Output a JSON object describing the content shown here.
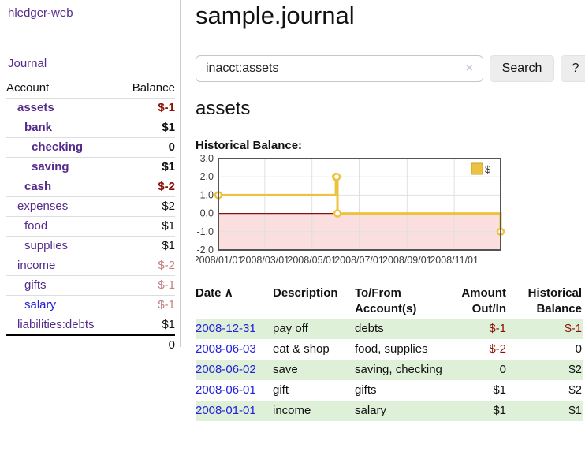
{
  "colors": {
    "link_purple": "#552a8b",
    "link_blue": "#2420dd",
    "negative_strong": "#8b0f05",
    "negative_soft": "#c47f7f",
    "row_stripe_green": "#dff0d8",
    "chart_line_gold": "#edc240",
    "chart_negative_fill": "#fbdede",
    "chart_zero_line": "#871010"
  },
  "app": {
    "title": "hledger-web"
  },
  "sidebar": {
    "journal_link": "Journal",
    "accounts": {
      "header_account": "Account",
      "header_balance": "Balance",
      "rows": [
        {
          "account": "assets",
          "balance": "$-1",
          "indent": 1,
          "bold": true,
          "balance_tone": "strong",
          "link": "purple"
        },
        {
          "account": "bank",
          "balance": "$1",
          "indent": 2,
          "bold": true,
          "balance_tone": "none",
          "link": "purple"
        },
        {
          "account": "checking",
          "balance": "0",
          "indent": 3,
          "bold": true,
          "balance_tone": "none",
          "link": "purple"
        },
        {
          "account": "saving",
          "balance": "$1",
          "indent": 3,
          "bold": true,
          "balance_tone": "none",
          "link": "purple"
        },
        {
          "account": "cash",
          "balance": "$-2",
          "indent": 2,
          "bold": true,
          "balance_tone": "strong",
          "link": "purple"
        },
        {
          "account": "expenses",
          "balance": "$2",
          "indent": 1,
          "bold": false,
          "balance_tone": "none",
          "link": "purple"
        },
        {
          "account": "food",
          "balance": "$1",
          "indent": 2,
          "bold": false,
          "balance_tone": "none",
          "link": "purple"
        },
        {
          "account": "supplies",
          "balance": "$1",
          "indent": 2,
          "bold": false,
          "balance_tone": "none",
          "link": "purple"
        },
        {
          "account": "income",
          "balance": "$-2",
          "indent": 1,
          "bold": false,
          "balance_tone": "soft",
          "link": "purple"
        },
        {
          "account": "gifts",
          "balance": "$-1",
          "indent": 2,
          "bold": false,
          "balance_tone": "soft",
          "link": "purple"
        },
        {
          "account": "salary",
          "balance": "$-1",
          "indent": 2,
          "bold": false,
          "balance_tone": "soft",
          "link": "blue"
        },
        {
          "account": "liabilities:debts",
          "balance": "$1",
          "indent": 1,
          "bold": false,
          "balance_tone": "none",
          "link": "purple"
        }
      ],
      "total": "0"
    }
  },
  "main": {
    "title": "sample.journal",
    "search": {
      "value": "inacct:assets",
      "clear_icon": "×",
      "search_button": "Search",
      "help_button": "?"
    },
    "section_title": "assets",
    "chart_label": "Historical Balance:"
  },
  "chart_data": {
    "type": "line",
    "step": true,
    "title": "Historical Balance",
    "legend": {
      "label": "$",
      "position": "top-right"
    },
    "x_range": [
      "2008-01-01",
      "2008-12-31"
    ],
    "xticks": [
      "2008/01/01",
      "2008/03/01",
      "2008/05/01",
      "2008/07/01",
      "2008/09/01",
      "2008/11/01"
    ],
    "yticks": [
      "3.0",
      "2.0",
      "1.0",
      "0.0",
      "-1.0",
      "-2.0"
    ],
    "ylim": [
      -2,
      3
    ],
    "grid": true,
    "series": [
      {
        "name": "$",
        "points": [
          {
            "x": "2008-01-01",
            "y": 1
          },
          {
            "x": "2008-06-01",
            "y": 2
          },
          {
            "x": "2008-06-02",
            "y": 2
          },
          {
            "x": "2008-06-03",
            "y": 0
          },
          {
            "x": "2008-12-31",
            "y": -1
          }
        ]
      }
    ]
  },
  "register": {
    "headers": {
      "date": "Date",
      "date_sort_icon": "∧",
      "description": "Description",
      "accounts_line1": "To/From",
      "accounts_line2": "Account(s)",
      "amount_line1": "Amount",
      "amount_line2": "Out/In",
      "balance_line1": "Historical",
      "balance_line2": "Balance"
    },
    "rows": [
      {
        "date": "2008-12-31",
        "description": "pay off",
        "accounts": "debts",
        "amount": "$-1",
        "amount_tone": "strong",
        "balance": "$-1",
        "balance_tone": "strong"
      },
      {
        "date": "2008-06-03",
        "description": "eat & shop",
        "accounts": "food, supplies",
        "amount": "$-2",
        "amount_tone": "strong",
        "balance": "0",
        "balance_tone": "none"
      },
      {
        "date": "2008-06-02",
        "description": "save",
        "accounts": "saving, checking",
        "amount": "0",
        "amount_tone": "none",
        "balance": "$2",
        "balance_tone": "none"
      },
      {
        "date": "2008-06-01",
        "description": "gift",
        "accounts": "gifts",
        "amount": "$1",
        "amount_tone": "none",
        "balance": "$2",
        "balance_tone": "none"
      },
      {
        "date": "2008-01-01",
        "description": "income",
        "accounts": "salary",
        "amount": "$1",
        "amount_tone": "none",
        "balance": "$1",
        "balance_tone": "none"
      }
    ]
  }
}
